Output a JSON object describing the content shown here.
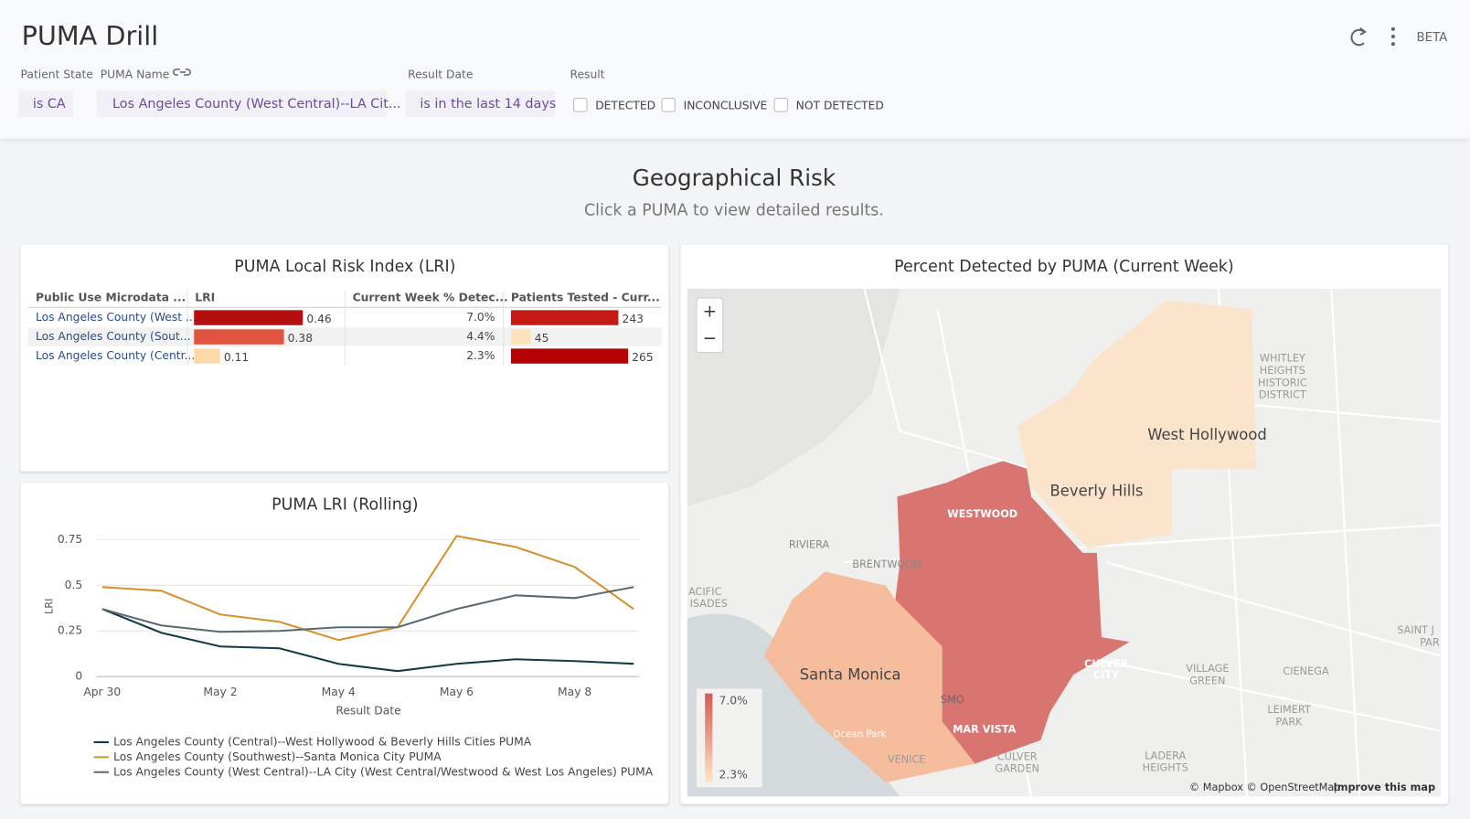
{
  "header": {
    "title": "PUMA Drill",
    "badge": "BETA"
  },
  "filters": [
    {
      "label": "Patient State",
      "value": "is CA"
    },
    {
      "label": "PUMA Name",
      "value": "Los Angeles County (West Central)--LA Cit..."
    },
    {
      "label": "Result Date",
      "value": "is in the last 14 days"
    },
    {
      "label": "Result",
      "options": [
        "DETECTED",
        "INCONCLUSIVE",
        "NOT DETECTED"
      ]
    }
  ],
  "section": {
    "title": "Geographical Risk",
    "subtitle": "Click a PUMA to view detailed results."
  },
  "table": {
    "title": "PUMA Local Risk Index (LRI)",
    "columns": [
      "Public Use Microdata ...",
      "LRI",
      "Current Week % Detec...",
      "Patients Tested - Curr..."
    ],
    "rows": [
      {
        "name": "Los Angeles County (West ...",
        "lri": 0.46,
        "lri_color": "#b30f0f",
        "pct": "7.0%",
        "tested": 243,
        "tested_color": "#c81a14"
      },
      {
        "name": "Los Angeles County (Sout...",
        "lri": 0.38,
        "lri_color": "#e0533d",
        "pct": "4.4%",
        "tested": 45,
        "tested_color": "#fde3bd"
      },
      {
        "name": "Los Angeles County (Centr...",
        "lri": 0.11,
        "lri_color": "#fdd9a8",
        "pct": "2.3%",
        "tested": 265,
        "tested_color": "#b30000"
      }
    ]
  },
  "chart_data": {
    "type": "line",
    "title": "PUMA LRI (Rolling)",
    "x_label": "Result Date",
    "y_label": "LRI",
    "categories": [
      "Apr 30",
      null,
      "May 2",
      null,
      "May 4",
      null,
      "May 6",
      null,
      "May 8",
      null
    ],
    "ylim": [
      0,
      0.78
    ],
    "yticks": [
      0,
      0.25,
      0.5,
      0.75
    ],
    "grid": true,
    "series": [
      {
        "name": "Los Angeles County (Central)--West Hollywood & Beverly Hills Cities PUMA",
        "color": "#163a48",
        "values": [
          0.37,
          0.24,
          0.165,
          0.155,
          0.07,
          0.03,
          0.07,
          0.095,
          0.085,
          0.07
        ]
      },
      {
        "name": "Los Angeles County (Southwest)--Santa Monica City PUMA",
        "color": "#d4922e",
        "values": [
          0.49,
          0.47,
          0.34,
          0.3,
          0.2,
          0.27,
          0.77,
          0.71,
          0.6,
          0.37
        ]
      },
      {
        "name": "Los Angeles County (West Central)--LA City (West Central/Westwood & West Los Angeles) PUMA",
        "color": "#5a6a70",
        "values": [
          0.37,
          0.28,
          0.245,
          0.25,
          0.27,
          0.27,
          0.37,
          0.445,
          0.43,
          0.49
        ]
      }
    ]
  },
  "map": {
    "title": "Percent Detected by PUMA (Current Week)",
    "legend": {
      "max": "7.0%",
      "min": "2.3%"
    },
    "places": [
      "West Hollywood",
      "Beverly Hills",
      "Santa Monica",
      "WESTWOOD",
      "MAR VISTA",
      "CULVER",
      "CITY",
      "BRENTWOOD",
      "RIVIERA",
      "VENICE",
      "SMO",
      "Ocean Park",
      "CULVER",
      "GARDEN",
      "VILLAGE",
      "GREEN",
      "CIENEGA",
      "LEIMERT",
      "PARK",
      "LADERA",
      "HEIGHTS",
      "WHITLEY",
      "HEIGHTS",
      "HISTORIC",
      "DISTRICT",
      "SAINT J",
      "PAR",
      "ACIFIC",
      "ISADES"
    ],
    "attribution": "© Mapbox © OpenStreetMap",
    "improve": "Improve this map"
  }
}
